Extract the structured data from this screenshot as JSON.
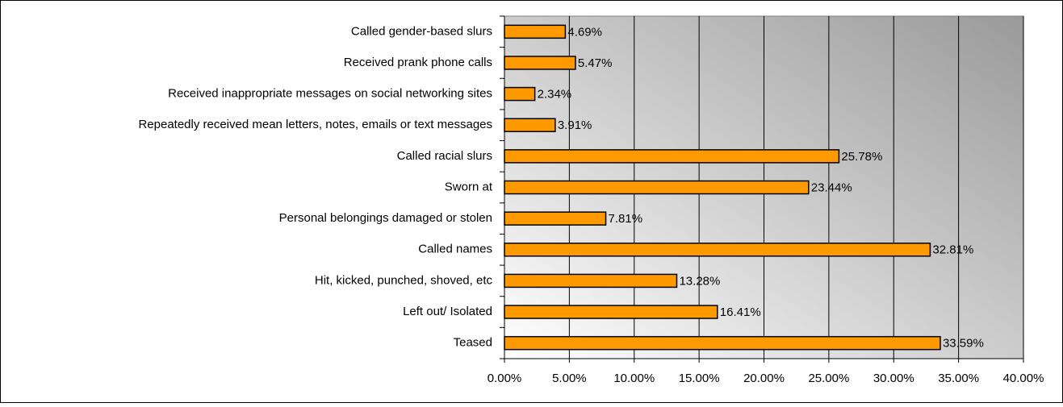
{
  "chart_data": {
    "type": "bar",
    "orientation": "horizontal",
    "categories": [
      "Called gender-based slurs",
      "Received prank phone calls",
      "Received inappropriate messages on social networking sites",
      "Repeatedly received mean letters, notes, emails or text messages",
      "Called racial slurs",
      "Sworn at",
      "Personal belongings damaged or stolen",
      "Called names",
      "Hit, kicked, punched, shoved, etc",
      "Left out/ Isolated",
      "Teased"
    ],
    "values": [
      4.69,
      5.47,
      2.34,
      3.91,
      25.78,
      23.44,
      7.81,
      32.81,
      13.28,
      16.41,
      33.59
    ],
    "value_labels": [
      "4.69%",
      "5.47%",
      "2.34%",
      "3.91%",
      "25.78%",
      "23.44%",
      "7.81%",
      "32.81%",
      "13.28%",
      "16.41%",
      "33.59%"
    ],
    "color": "#ff9900",
    "xlim": [
      0,
      40
    ],
    "xticks": [
      {
        "value": 0,
        "label": "0.00%"
      },
      {
        "value": 5,
        "label": "5.00%"
      },
      {
        "value": 10,
        "label": "10.00%"
      },
      {
        "value": 15,
        "label": "15.00%"
      },
      {
        "value": 20,
        "label": "20.00%"
      },
      {
        "value": 25,
        "label": "25.00%"
      },
      {
        "value": 30,
        "label": "30.00%"
      },
      {
        "value": 35,
        "label": "35.00%"
      },
      {
        "value": 40,
        "label": "40.00%"
      }
    ],
    "grid": true
  }
}
